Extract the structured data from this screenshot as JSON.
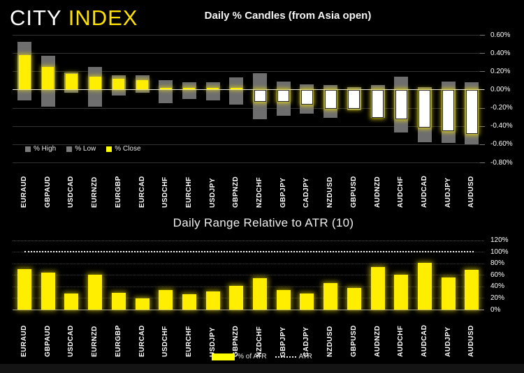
{
  "header": {
    "logo_city": "CITY",
    "logo_index": "INDEX"
  },
  "colors": {
    "background": "#000000",
    "logo_city": "#ffffff",
    "logo_index": "#ffe100",
    "bar_yellow": "#ffee00",
    "bar_gray": "#6e6e6e",
    "negative_close_fill": "#ffffff",
    "zero_line": "#e6e6e6",
    "grid_line": "#333333",
    "atr_line": "#f5f5f5",
    "axis_text": "#ffffff"
  },
  "chart_data": [
    {
      "id": "candles",
      "type": "bar",
      "title": "Daily % Candles (from Asia open)",
      "categories": [
        "EURAUD",
        "GBPAUD",
        "USDCAD",
        "EURNZD",
        "EURGBP",
        "EURCAD",
        "USDCHF",
        "EURCHF",
        "USDJPY",
        "GBPNZD",
        "NZDCHF",
        "GBPJPY",
        "CADJPY",
        "NZDUSD",
        "GBPUSD",
        "AUDNZD",
        "AUDCHF",
        "AUDCAD",
        "AUDJPY",
        "AUDUSD"
      ],
      "series": [
        {
          "name": "% High",
          "color": "#6e6e6e",
          "values": [
            0.52,
            0.37,
            0.19,
            0.25,
            0.16,
            0.16,
            0.1,
            0.08,
            0.08,
            0.13,
            0.18,
            0.09,
            0.06,
            0.05,
            0.03,
            0.05,
            0.14,
            0.03,
            0.09,
            0.08
          ]
        },
        {
          "name": "% Low",
          "color": "#6e6e6e",
          "values": [
            -0.11,
            -0.18,
            -0.03,
            -0.18,
            -0.06,
            -0.03,
            -0.14,
            -0.1,
            -0.11,
            -0.16,
            -0.32,
            -0.28,
            -0.26,
            -0.3,
            -0.22,
            -0.3,
            -0.46,
            -0.57,
            -0.58,
            -0.59
          ]
        },
        {
          "name": "% Close",
          "color": "#ffee00",
          "values": [
            0.38,
            0.25,
            0.17,
            0.14,
            0.12,
            0.1,
            0.02,
            0.02,
            0.01,
            0.0,
            -0.13,
            -0.13,
            -0.16,
            -0.2,
            -0.2,
            -0.3,
            -0.32,
            -0.41,
            -0.45,
            -0.48
          ]
        }
      ],
      "ylim": [
        -0.8,
        0.6
      ],
      "ytick_step": 0.2,
      "yticks": [
        "0.60%",
        "0.40%",
        "0.20%",
        "0.00%",
        "-0.20%",
        "-0.40%",
        "-0.60%",
        "-0.80%"
      ],
      "grid": true,
      "legend_position": "bottom-left"
    },
    {
      "id": "atr",
      "type": "bar",
      "title": "Daily Range Relative to ATR (10)",
      "categories": [
        "EURAUD",
        "GBPAUD",
        "USDCAD",
        "EURNZD",
        "EURGBP",
        "EURCAD",
        "USDCHF",
        "EURCHF",
        "USDJPY",
        "GBPNZD",
        "NZDCHF",
        "GBPJPY",
        "CADJPY",
        "NZDUSD",
        "GBPUSD",
        "AUDNZD",
        "AUDCHF",
        "AUDCAD",
        "AUDJPY",
        "AUDUSD"
      ],
      "series": [
        {
          "name": "% of ATR",
          "color": "#ffee00",
          "values": [
            70,
            64,
            28,
            60,
            29,
            19,
            34,
            27,
            31,
            41,
            54,
            34,
            28,
            46,
            38,
            74,
            61,
            81,
            55,
            69
          ]
        }
      ],
      "reference_line": {
        "name": "ATR",
        "value": 100,
        "style": "dotted",
        "color": "#f5f5f5"
      },
      "ylim": [
        0,
        120
      ],
      "ytick_step": 20,
      "yticks": [
        "120%",
        "100%",
        "80%",
        "60%",
        "40%",
        "20%",
        "0%"
      ],
      "grid": true,
      "legend_position": "bottom-center"
    }
  ]
}
